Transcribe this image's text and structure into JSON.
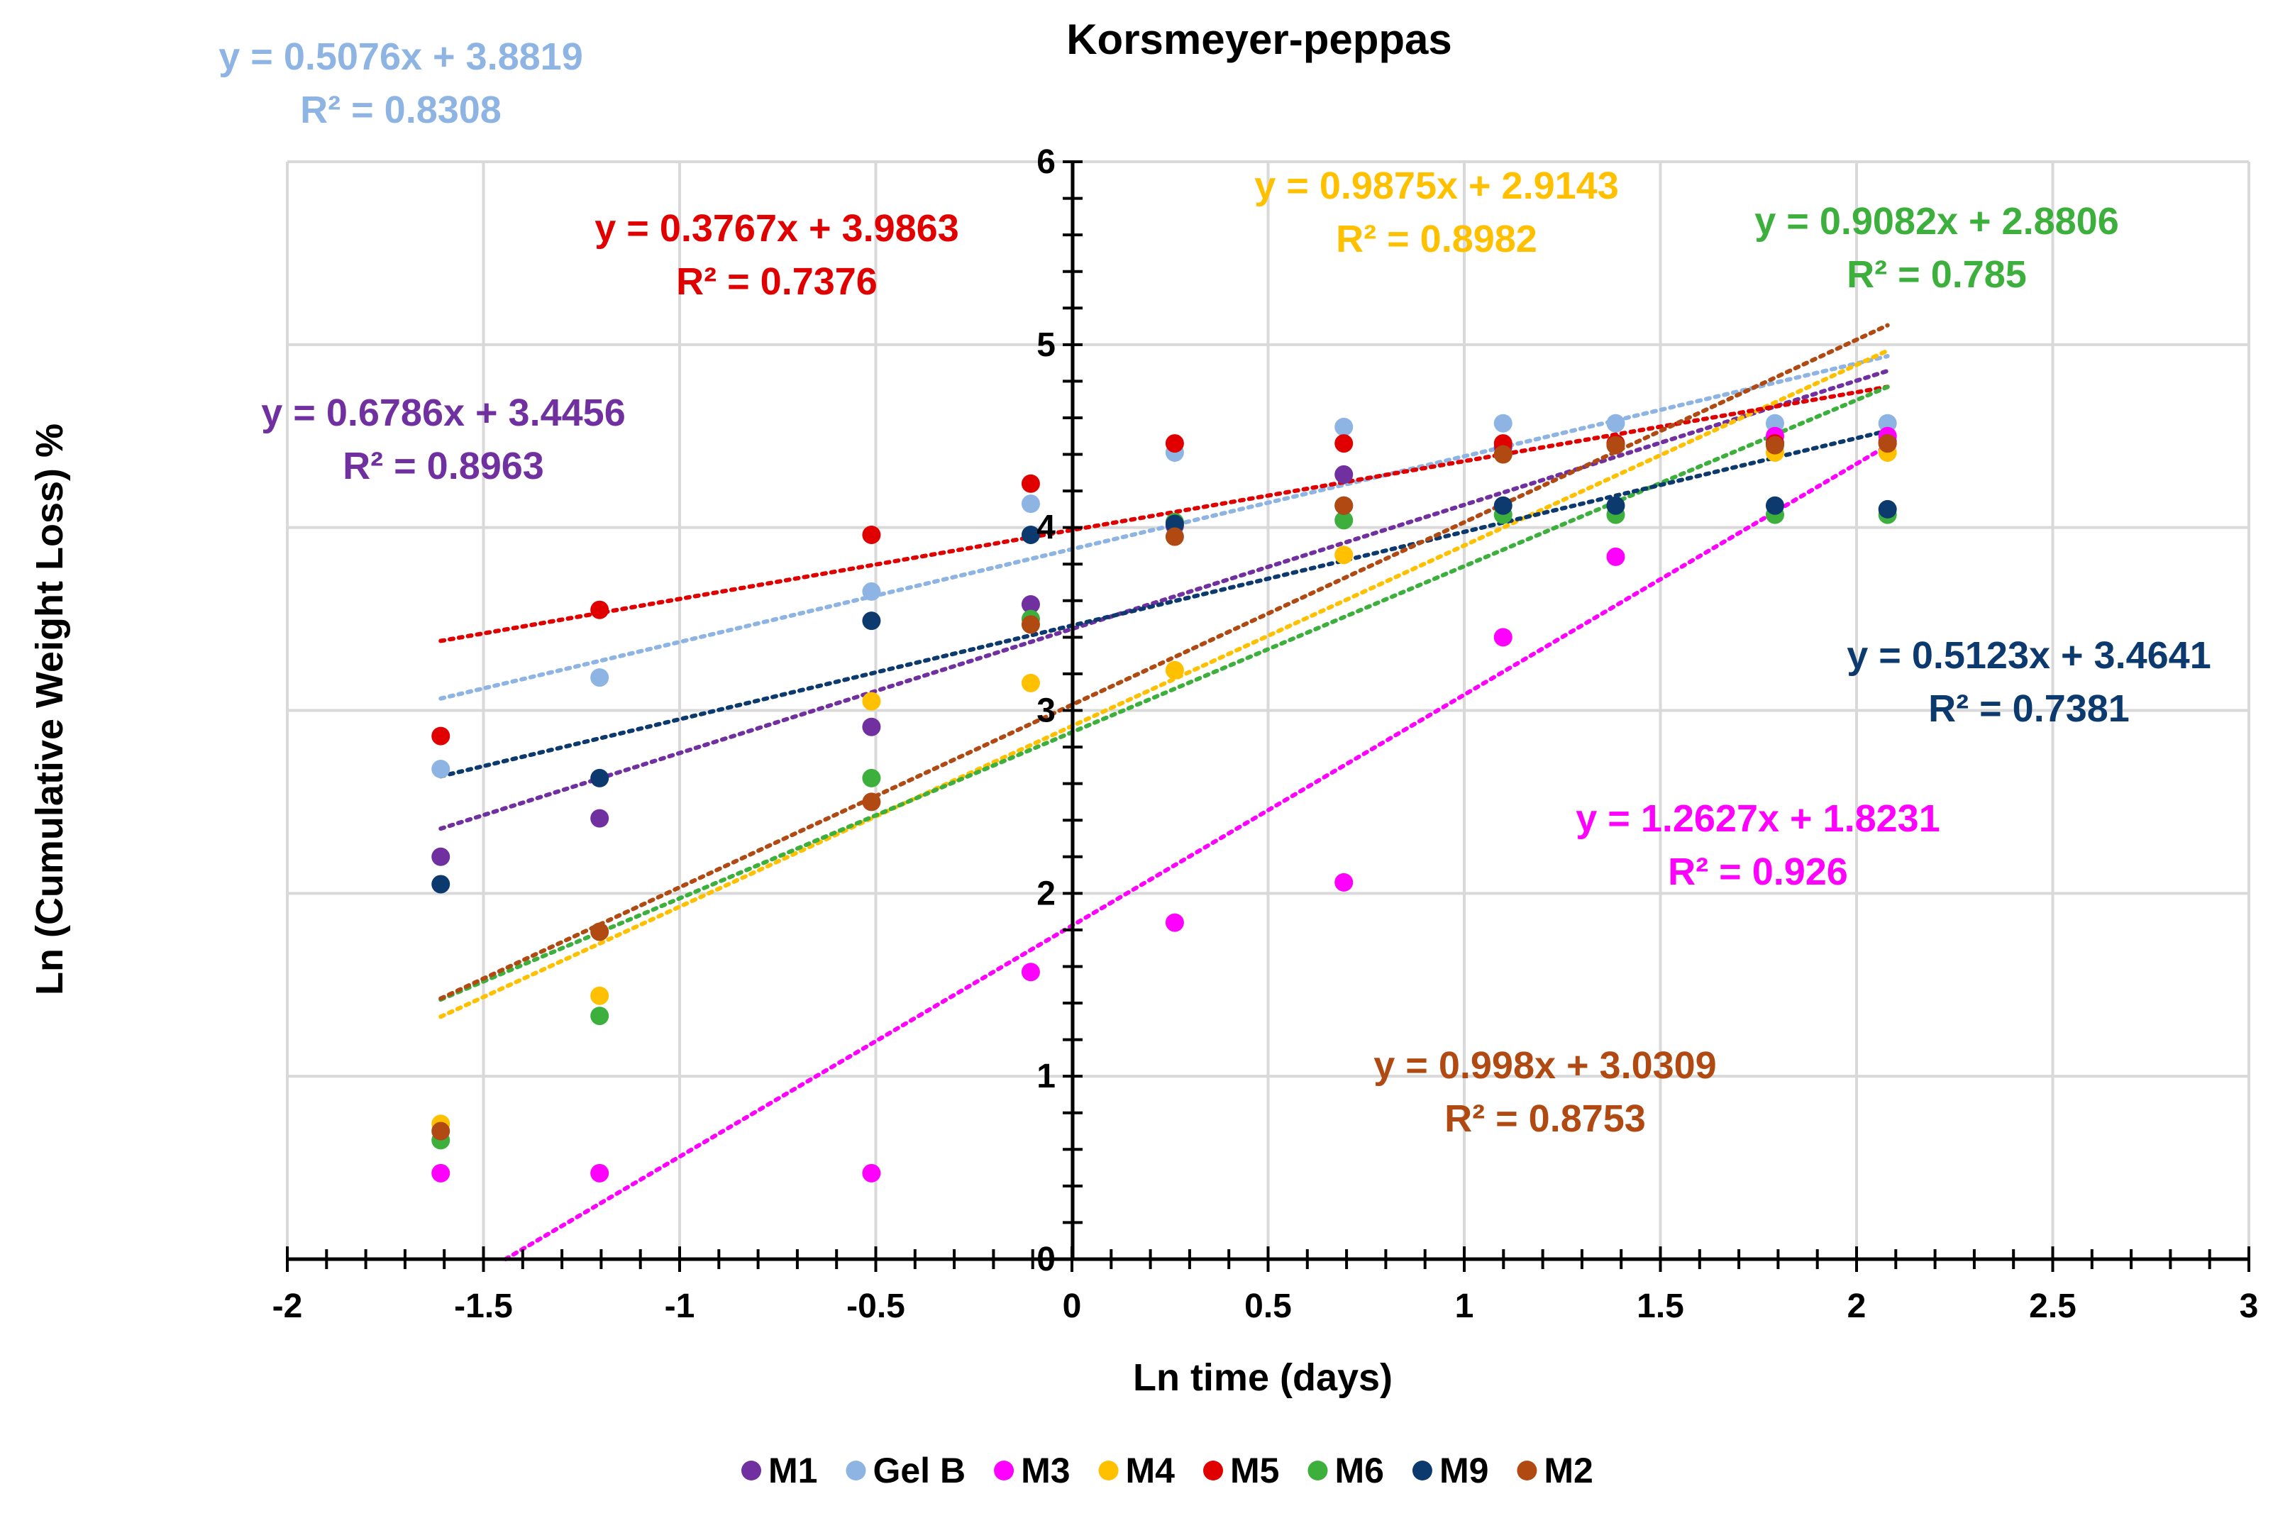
{
  "chart_data": {
    "type": "scatter",
    "title": "Korsmeyer-peppas",
    "xlabel": "Ln time (days)",
    "ylabel": "Ln (Cumulative Weight Loss) %",
    "xlim": [
      -2,
      3
    ],
    "ylim": [
      0,
      6
    ],
    "x_ticks": [
      "-2",
      "-1.5",
      "-1",
      "-0.5",
      "0",
      "0.5",
      "1",
      "1.5",
      "2",
      "2.5",
      "3"
    ],
    "y_ticks": [
      "0",
      "1",
      "2",
      "3",
      "4",
      "5",
      "6"
    ],
    "grid": true,
    "legend_position": "bottom",
    "x": [
      -1.609,
      -1.204,
      -0.511,
      -0.105,
      0.262,
      0.693,
      1.099,
      1.386,
      1.792,
      2.079
    ],
    "series": [
      {
        "name": "M1",
        "color": "#7030A0",
        "values": [
          2.2,
          2.41,
          2.91,
          3.58,
          4.01,
          4.29,
          4.44,
          4.45,
          4.46,
          4.47
        ],
        "trend": {
          "slope": 0.6786,
          "intercept": 3.4456
        },
        "equation": "y = 0.6786x + 3.4456",
        "r2": "R² = 0.8963"
      },
      {
        "name": "Gel B",
        "color": "#8EB4E3",
        "values": [
          2.68,
          3.18,
          3.65,
          4.13,
          4.41,
          4.55,
          4.57,
          4.57,
          4.57,
          4.57
        ],
        "trend": {
          "slope": 0.5076,
          "intercept": 3.8819
        },
        "equation": "y = 0.5076x + 3.8819",
        "r2": "R² = 0.8308"
      },
      {
        "name": "M3",
        "color": "#FF00FF",
        "values": [
          0.47,
          0.47,
          0.47,
          1.57,
          1.84,
          2.06,
          3.4,
          3.84,
          4.5,
          4.5
        ],
        "trend": {
          "slope": 1.2627,
          "intercept": 1.8231
        },
        "equation": "y = 1.2627x + 1.8231",
        "r2": "R² = 0.926"
      },
      {
        "name": "M4",
        "color": "#FFC000",
        "values": [
          0.74,
          1.44,
          3.05,
          3.15,
          3.22,
          3.85,
          4.4,
          4.45,
          4.41,
          4.41
        ],
        "trend": {
          "slope": 0.9875,
          "intercept": 2.9143
        },
        "equation": "y = 0.9875x + 2.9143",
        "r2": "R² = 0.8982"
      },
      {
        "name": "M5",
        "color": "#E00000",
        "values": [
          2.86,
          3.55,
          3.96,
          4.24,
          4.46,
          4.46,
          4.46,
          4.46,
          4.46,
          4.46
        ],
        "trend": {
          "slope": 0.3767,
          "intercept": 3.9863
        },
        "equation": "y = 0.3767x + 3.9863",
        "r2": "R² = 0.7376"
      },
      {
        "name": "M6",
        "color": "#3CAF3C",
        "values": [
          0.65,
          1.33,
          2.63,
          3.5,
          4.03,
          4.04,
          4.07,
          4.07,
          4.07,
          4.07
        ],
        "trend": {
          "slope": 0.9082,
          "intercept": 2.8806
        },
        "equation": "y = 0.9082x + 2.8806",
        "r2": "R² = 0.785"
      },
      {
        "name": "M9",
        "color": "#0D3A6E",
        "values": [
          2.05,
          2.63,
          3.49,
          3.96,
          4.02,
          4.12,
          4.12,
          4.12,
          4.12,
          4.1
        ],
        "trend": {
          "slope": 0.5123,
          "intercept": 3.4641
        },
        "equation": "y = 0.5123x + 3.4641",
        "r2": "R² = 0.7381"
      },
      {
        "name": "M2",
        "color": "#B04A12",
        "values": [
          0.7,
          1.79,
          2.5,
          3.47,
          3.95,
          4.12,
          4.4,
          4.45,
          4.45,
          4.46
        ],
        "trend": {
          "slope": 0.998,
          "intercept": 3.0309
        },
        "equation": "y = 0.998x + 3.0309",
        "r2": "R² = 0.8753"
      }
    ]
  }
}
